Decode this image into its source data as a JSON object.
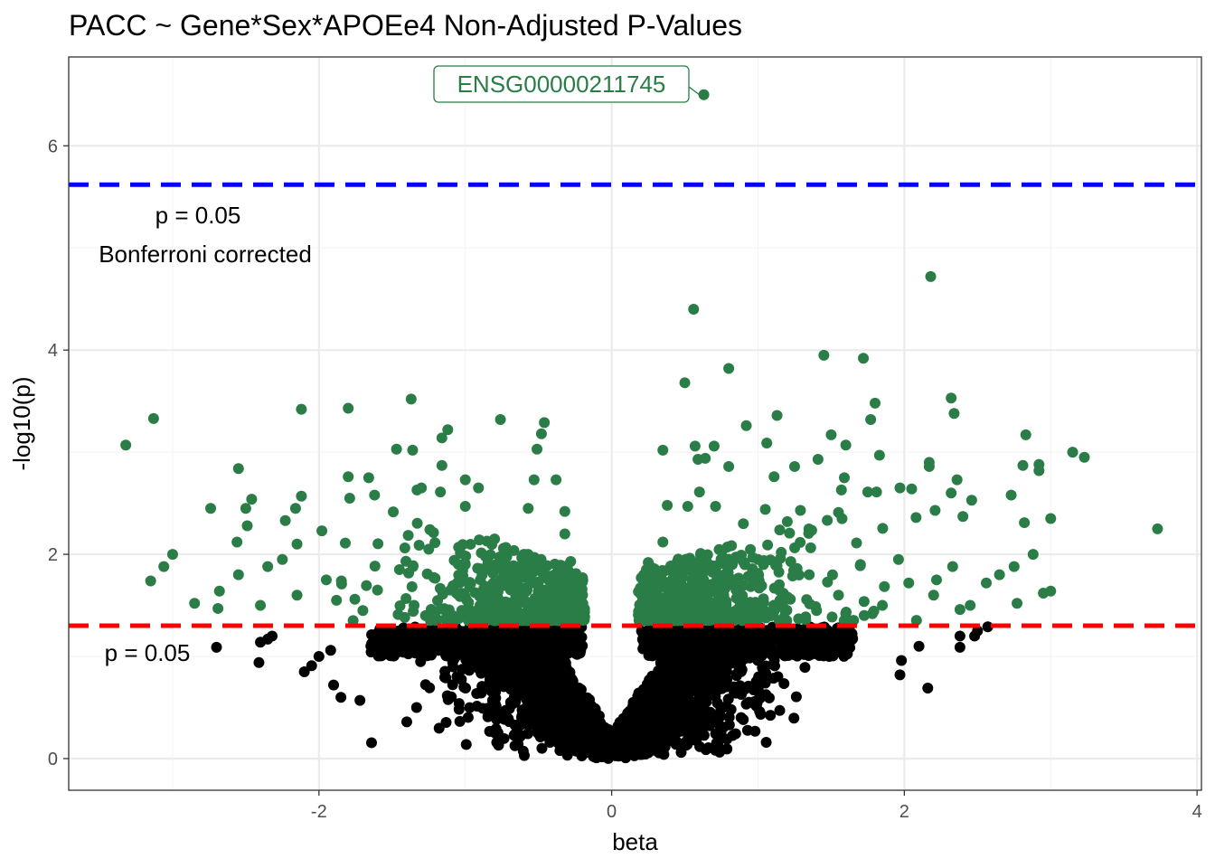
{
  "chart_data": {
    "type": "scatter",
    "title": "PACC ~ Gene*Sex*APOEe4 Non-Adjusted P-Values",
    "xlabel": "beta",
    "ylabel": "-log10(p)",
    "xlim": [
      -3.71,
      4.03
    ],
    "ylim": [
      -0.31,
      6.87
    ],
    "x_ticks": [
      -2,
      0,
      2,
      4
    ],
    "x_tick_labels": [
      "-2",
      "0",
      "2",
      "4"
    ],
    "y_ticks": [
      0,
      2,
      4,
      6
    ],
    "y_tick_labels": [
      "0",
      "2",
      "4",
      "6"
    ],
    "grid": true,
    "theme": "bw",
    "colors": {
      "significant": "#2a7d46",
      "non_significant": "#000000",
      "bonferroni_line": "#0000ff",
      "nominal_line": "#ff0000",
      "grid_major": "#ebebeb",
      "grid_minor": "#f5f5f5"
    },
    "hlines": [
      {
        "name": "bonferroni",
        "y": 5.62,
        "color": "#0000ff",
        "style": "dashed"
      },
      {
        "name": "nominal",
        "y": 1.301,
        "color": "#ff0000",
        "style": "dashed"
      }
    ],
    "annotations": {
      "bonferroni_line1": "p = 0.05",
      "bonferroni_line2": "Bonferroni corrected",
      "nominal": "p = 0.05"
    },
    "labeled_point": {
      "label": "ENSG00000211745",
      "x": 0.63,
      "y": 6.5
    },
    "highlighted_points": [
      [
        2.18,
        4.72
      ],
      [
        0.56,
        4.4
      ],
      [
        1.45,
        3.95
      ],
      [
        1.72,
        3.92
      ],
      [
        0.8,
        3.82
      ],
      [
        0.5,
        3.68
      ],
      [
        -1.37,
        3.52
      ],
      [
        2.32,
        3.53
      ],
      [
        1.8,
        3.48
      ],
      [
        -1.8,
        3.43
      ],
      [
        -2.12,
        3.42
      ],
      [
        2.34,
        3.38
      ],
      [
        1.13,
        3.36
      ],
      [
        -3.13,
        3.33
      ],
      [
        -0.76,
        3.32
      ],
      [
        1.77,
        3.32
      ],
      [
        -0.46,
        3.29
      ],
      [
        0.92,
        3.26
      ],
      [
        -1.12,
        3.22
      ],
      [
        3.15,
        3.0
      ],
      [
        1.5,
        3.17
      ],
      [
        -0.48,
        3.18
      ],
      [
        2.83,
        3.17
      ],
      [
        -1.16,
        3.14
      ],
      [
        1.06,
        3.09
      ],
      [
        -3.32,
        3.07
      ],
      [
        1.6,
        3.07
      ],
      [
        0.7,
        3.06
      ],
      [
        0.57,
        3.06
      ],
      [
        -1.47,
        3.03
      ],
      [
        -0.51,
        3.03
      ],
      [
        -1.36,
        3.02
      ],
      [
        0.35,
        3.02
      ],
      [
        1.83,
        2.97
      ],
      [
        3.23,
        2.95
      ],
      [
        0.59,
        2.93
      ],
      [
        0.64,
        2.94
      ],
      [
        1.41,
        2.93
      ],
      [
        2.17,
        2.9
      ],
      [
        -1.16,
        2.87
      ],
      [
        2.81,
        2.87
      ],
      [
        2.92,
        2.88
      ],
      [
        2.17,
        2.86
      ],
      [
        2.92,
        2.82
      ],
      [
        0.8,
        2.86
      ],
      [
        1.25,
        2.86
      ],
      [
        -2.55,
        2.84
      ],
      [
        1.59,
        2.75
      ],
      [
        -1.8,
        2.76
      ],
      [
        -1.66,
        2.75
      ],
      [
        -0.38,
        2.73
      ],
      [
        -1.0,
        2.73
      ],
      [
        -0.53,
        2.73
      ],
      [
        1.11,
        2.76
      ],
      [
        2.36,
        2.73
      ],
      [
        2.05,
        2.64
      ],
      [
        1.97,
        2.65
      ],
      [
        2.73,
        2.58
      ],
      [
        3.0,
        2.35
      ],
      [
        2.32,
        2.6
      ],
      [
        -1.3,
        2.65
      ],
      [
        -0.91,
        2.65
      ],
      [
        -1.33,
        2.63
      ],
      [
        -1.17,
        2.61
      ],
      [
        -1.62,
        2.58
      ],
      [
        -2.12,
        2.57
      ],
      [
        -1.79,
        2.55
      ],
      [
        -2.46,
        2.54
      ],
      [
        1.57,
        2.63
      ],
      [
        1.81,
        2.61
      ],
      [
        1.75,
        2.61
      ],
      [
        0.6,
        2.61
      ],
      [
        2.46,
        2.53
      ],
      [
        -2.74,
        2.45
      ],
      [
        -2.16,
        2.45
      ],
      [
        -1.0,
        2.47
      ],
      [
        -0.57,
        2.45
      ],
      [
        -0.32,
        2.42
      ],
      [
        0.38,
        2.48
      ],
      [
        0.52,
        2.47
      ],
      [
        0.71,
        2.47
      ],
      [
        1.05,
        2.44
      ],
      [
        1.29,
        2.43
      ],
      [
        1.55,
        2.41
      ],
      [
        2.21,
        2.43
      ],
      [
        2.4,
        2.37
      ],
      [
        2.08,
        2.36
      ],
      [
        2.82,
        2.31
      ],
      [
        -2.5,
        2.45
      ],
      [
        -2.23,
        2.33
      ],
      [
        -2.49,
        2.28
      ],
      [
        -1.98,
        2.23
      ],
      [
        -1.82,
        2.11
      ],
      [
        -2.56,
        2.12
      ],
      [
        -2.15,
        2.1
      ],
      [
        -3.0,
        2.0
      ],
      [
        -2.25,
        1.95
      ],
      [
        -2.35,
        1.88
      ],
      [
        -3.06,
        1.88
      ],
      [
        -3.15,
        1.74
      ],
      [
        -2.55,
        1.8
      ],
      [
        -2.68,
        1.64
      ],
      [
        -2.85,
        1.52
      ],
      [
        -2.69,
        1.47
      ],
      [
        -2.4,
        1.5
      ],
      [
        -1.88,
        1.55
      ],
      [
        -2.15,
        1.6
      ],
      [
        -1.95,
        1.75
      ],
      [
        2.77,
        1.52
      ],
      [
        2.95,
        1.62
      ],
      [
        3.0,
        1.64
      ],
      [
        2.88,
        2.0
      ],
      [
        2.65,
        1.8
      ],
      [
        2.75,
        1.88
      ],
      [
        2.56,
        1.72
      ],
      [
        2.45,
        1.5
      ],
      [
        2.38,
        1.46
      ],
      [
        2.2,
        1.6
      ],
      [
        2.03,
        1.72
      ],
      [
        1.96,
        1.95
      ],
      [
        2.33,
        1.88
      ],
      [
        2.22,
        1.75
      ],
      [
        3.73,
        2.25
      ],
      [
        1.2,
        2.32
      ],
      [
        0.9,
        2.3
      ],
      [
        0.35,
        2.12
      ],
      [
        0.25,
        1.92
      ],
      [
        0.3,
        1.75
      ],
      [
        0.22,
        1.55
      ],
      [
        0.2,
        1.42
      ],
      [
        -0.2,
        1.41
      ],
      [
        -0.22,
        1.55
      ],
      [
        -0.25,
        1.72
      ],
      [
        -0.28,
        1.93
      ],
      [
        -0.32,
        2.2
      ],
      [
        -0.6,
        2.0
      ],
      [
        -0.8,
        2.15
      ],
      [
        -1.0,
        1.9
      ],
      [
        -1.25,
        2.05
      ],
      [
        -1.45,
        1.85
      ],
      [
        -1.6,
        1.65
      ],
      [
        -1.7,
        1.45
      ],
      [
        -0.45,
        1.6
      ],
      [
        -0.7,
        1.8
      ],
      [
        -0.9,
        1.5
      ],
      [
        -1.1,
        1.65
      ],
      [
        -1.35,
        1.5
      ],
      [
        0.45,
        1.6
      ],
      [
        0.65,
        1.85
      ],
      [
        0.85,
        1.65
      ],
      [
        1.0,
        1.95
      ],
      [
        1.15,
        1.55
      ],
      [
        1.35,
        1.8
      ],
      [
        1.55,
        1.6
      ],
      [
        1.7,
        1.9
      ],
      [
        1.85,
        1.5
      ],
      [
        0.55,
        1.42
      ],
      [
        0.75,
        1.5
      ],
      [
        1.4,
        1.45
      ],
      [
        -0.55,
        1.45
      ],
      [
        -0.35,
        1.35
      ],
      [
        0.3,
        1.36
      ]
    ],
    "point_groups": [
      {
        "name": "significant",
        "color": "#2a7d46",
        "rule": "y >= 1.301"
      },
      {
        "name": "non_significant",
        "color": "#000000",
        "rule": "y < 1.301"
      }
    ],
    "outlier_black_points": [
      [
        -2.7,
        1.09
      ],
      [
        -2.41,
        0.94
      ],
      [
        -2.4,
        1.14
      ],
      [
        -2.35,
        1.17
      ],
      [
        -2.32,
        1.2
      ],
      [
        -1.92,
        1.06
      ],
      [
        -2.0,
        1.0
      ],
      [
        -2.05,
        0.91
      ],
      [
        -2.1,
        0.85
      ],
      [
        -1.9,
        0.72
      ],
      [
        -1.85,
        0.6
      ],
      [
        -1.72,
        0.57
      ],
      [
        -1.4,
        0.36
      ],
      [
        2.16,
        0.69
      ],
      [
        1.97,
        0.82
      ],
      [
        1.98,
        0.96
      ],
      [
        2.1,
        1.1
      ],
      [
        2.48,
        1.2
      ],
      [
        2.38,
        1.09
      ],
      [
        2.38,
        1.2
      ],
      [
        2.57,
        1.29
      ],
      [
        2.5,
        1.25
      ]
    ]
  }
}
